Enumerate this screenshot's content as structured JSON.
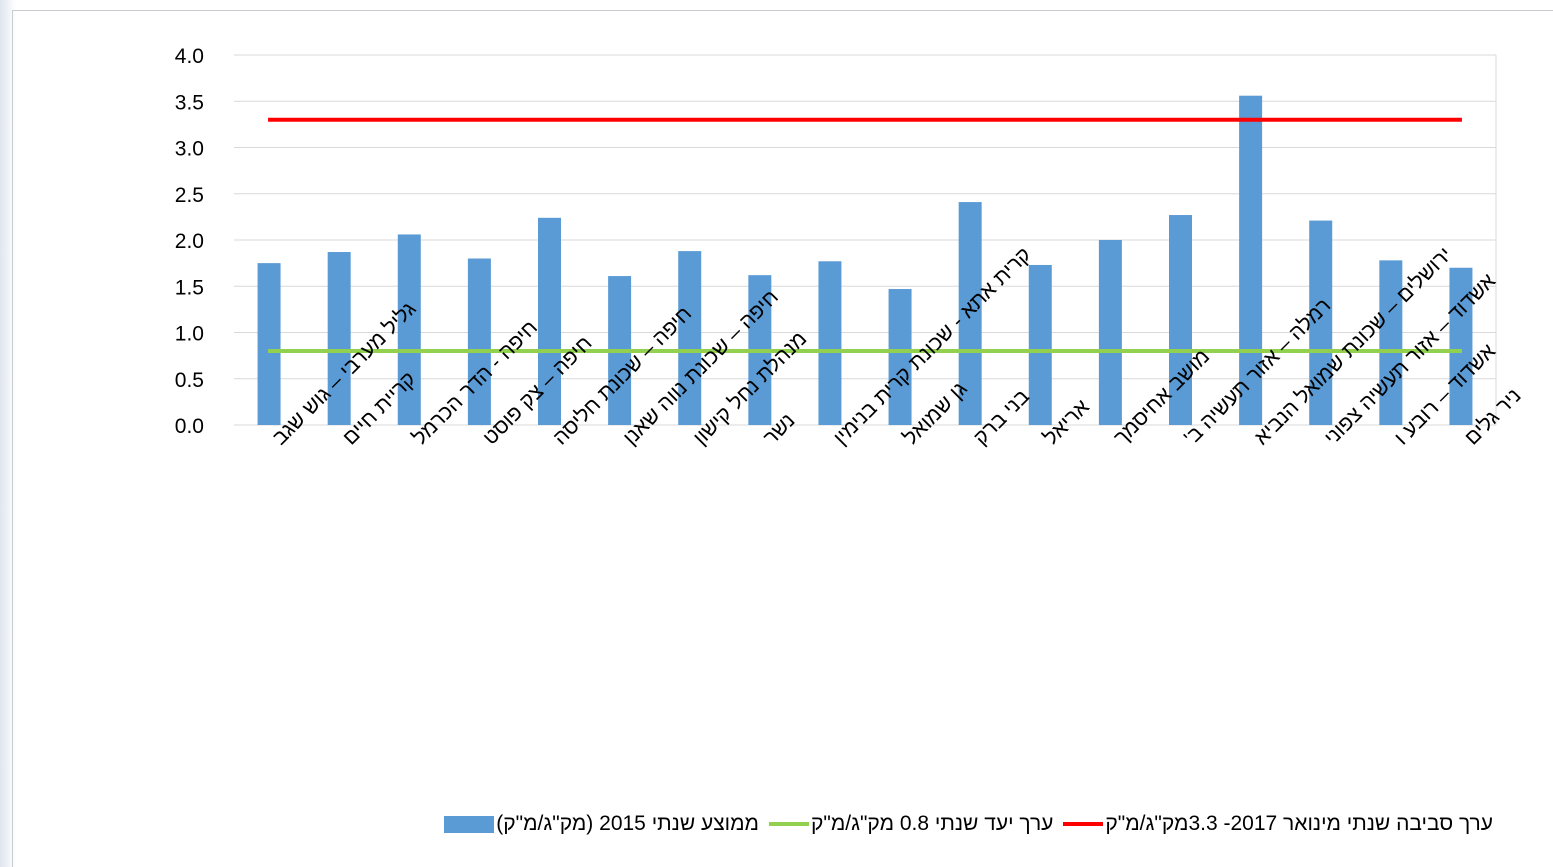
{
  "chart_data": {
    "type": "bar",
    "ylim": [
      0,
      4
    ],
    "yticks": [
      "0.0",
      "0.5",
      "1.0",
      "1.5",
      "2.0",
      "2.5",
      "3.0",
      "3.5",
      "4.0"
    ],
    "grid": true,
    "legend_position": "bottom",
    "categories": [
      "גליל מערבי – גוש שגב",
      "קריית חיים",
      "חיפה - הדר הכרמל",
      "חיפה – צק פוסט",
      "חיפה – שכונת חליסה",
      "חיפה – שכונת נווה שאנן",
      "מנהלת נחל קישון",
      "נשר",
      "קרית אתא - שכונת קרית בנימין",
      "גן שמואל",
      "בני ברק",
      "אריאל",
      "מושב אחיסמך",
      "רמלה – אזור תעשיה ב'",
      "ירושלים – שכונת שמואל הנביא",
      "אשדוד – אזור תעשיה צפוני",
      "אשדוד – רובע ו",
      "ניר גלים"
    ],
    "series": [
      {
        "name": "ממוצע שנתי 2015 (מק\"ג/מ\"ק)",
        "type": "bar",
        "color": "#5b9bd5",
        "values": [
          1.75,
          1.87,
          2.06,
          1.8,
          2.24,
          1.61,
          1.88,
          1.62,
          1.77,
          1.47,
          2.41,
          1.73,
          2.0,
          2.27,
          3.56,
          2.21,
          1.78,
          1.7
        ]
      },
      {
        "name": "ערך יעד שנתי 0.8 מק\"ג/מ\"ק",
        "type": "line",
        "color": "#92d050",
        "value": 0.8
      },
      {
        "name": "ערך סביבה שנתי מינואר 2017- 3.3מק\"ג/מ\"ק",
        "type": "line",
        "color": "#ff0000",
        "value": 3.3
      }
    ]
  }
}
